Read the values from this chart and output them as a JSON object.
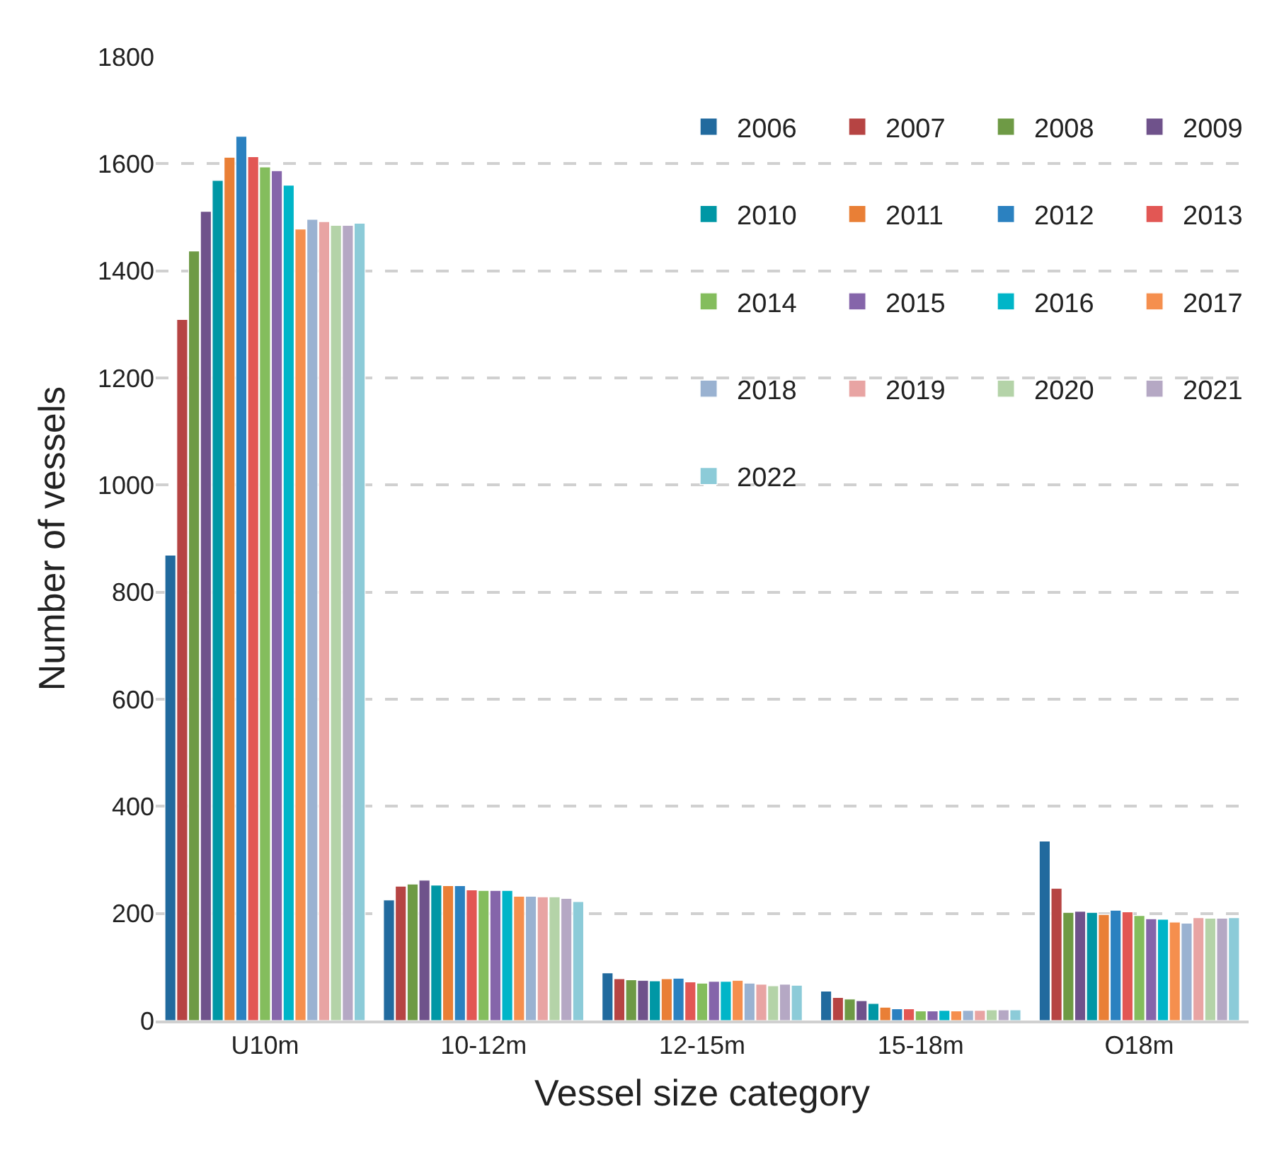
{
  "chart_data": {
    "type": "bar",
    "xlabel": "Vessel size category",
    "ylabel": "Number of vessels",
    "categories": [
      "U10m",
      "10-12m",
      "12-15m",
      "15-18m",
      "O18m"
    ],
    "ylim": [
      0,
      1800
    ],
    "yticks": [
      0,
      200,
      400,
      600,
      800,
      1000,
      1200,
      1400,
      1600,
      1800
    ],
    "grid": "y",
    "legend": "top right",
    "series": [
      {
        "name": "2006",
        "color": "#216a9e",
        "values": [
          869,
          225,
          89,
          55,
          335
        ]
      },
      {
        "name": "2007",
        "color": "#b64443",
        "values": [
          1309,
          251,
          78,
          43,
          247
        ]
      },
      {
        "name": "2008",
        "color": "#6e9a45",
        "values": [
          1437,
          255,
          76,
          40,
          202
        ]
      },
      {
        "name": "2009",
        "color": "#6f528b",
        "values": [
          1511,
          262,
          75,
          37,
          204
        ]
      },
      {
        "name": "2010",
        "color": "#0097a5",
        "values": [
          1569,
          253,
          74,
          32,
          202
        ]
      },
      {
        "name": "2011",
        "color": "#e97f36",
        "values": [
          1612,
          252,
          78,
          25,
          198
        ]
      },
      {
        "name": "2012",
        "color": "#2b81c0",
        "values": [
          1651,
          252,
          79,
          22,
          206
        ]
      },
      {
        "name": "2013",
        "color": "#e25754",
        "values": [
          1613,
          244,
          72,
          22,
          203
        ]
      },
      {
        "name": "2014",
        "color": "#84bd5d",
        "values": [
          1594,
          243,
          70,
          18,
          196
        ]
      },
      {
        "name": "2015",
        "color": "#8565aa",
        "values": [
          1587,
          243,
          73,
          18,
          190
        ]
      },
      {
        "name": "2016",
        "color": "#00b5c8",
        "values": [
          1560,
          243,
          73,
          19,
          189
        ]
      },
      {
        "name": "2017",
        "color": "#f58f4e",
        "values": [
          1478,
          232,
          75,
          18,
          184
        ]
      },
      {
        "name": "2018",
        "color": "#9ab2d1",
        "values": [
          1496,
          232,
          70,
          19,
          182
        ]
      },
      {
        "name": "2019",
        "color": "#e8a4a3",
        "values": [
          1492,
          231,
          68,
          19,
          192
        ]
      },
      {
        "name": "2020",
        "color": "#b4d3a8",
        "values": [
          1485,
          231,
          65,
          20,
          191
        ]
      },
      {
        "name": "2021",
        "color": "#b5a8c4",
        "values": [
          1485,
          228,
          68,
          20,
          191
        ]
      },
      {
        "name": "2022",
        "color": "#8ccbd8",
        "values": [
          1489,
          222,
          66,
          20,
          192
        ]
      }
    ]
  }
}
